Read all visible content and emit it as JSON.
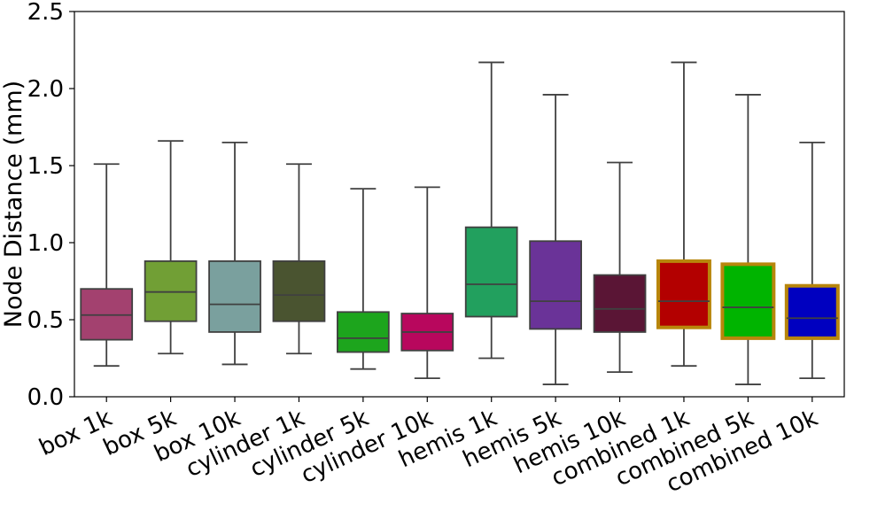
{
  "chart_data": {
    "type": "boxplot",
    "title": "",
    "xlabel": "",
    "ylabel": "Node Distance (mm)",
    "ylim": [
      0.0,
      2.5
    ],
    "yticks": [
      "0.0",
      "0.5",
      "1.0",
      "1.5",
      "2.0",
      "2.5"
    ],
    "categories": [
      "box 1k",
      "box 5k",
      "box 10k",
      "cylinder 1k",
      "cylinder 5k",
      "cylinder 10k",
      "hemis 1k",
      "hemis 5k",
      "hemis 10k",
      "combined 1k",
      "combined 5k",
      "combined 10k"
    ],
    "boxes": [
      {
        "name": "box 1k",
        "min": 0.2,
        "q1": 0.37,
        "median": 0.53,
        "q3": 0.7,
        "max": 1.51,
        "color": "#a3416f",
        "edge": "#404040"
      },
      {
        "name": "box 5k",
        "min": 0.28,
        "q1": 0.49,
        "median": 0.68,
        "q3": 0.88,
        "max": 1.66,
        "color": "#719f35",
        "edge": "#404040"
      },
      {
        "name": "box 10k",
        "min": 0.21,
        "q1": 0.42,
        "median": 0.6,
        "q3": 0.88,
        "max": 1.65,
        "color": "#7aa09e",
        "edge": "#404040"
      },
      {
        "name": "cylinder 1k",
        "min": 0.28,
        "q1": 0.49,
        "median": 0.66,
        "q3": 0.88,
        "max": 1.51,
        "color": "#4a5430",
        "edge": "#404040"
      },
      {
        "name": "cylinder 5k",
        "min": 0.18,
        "q1": 0.29,
        "median": 0.38,
        "q3": 0.55,
        "max": 1.35,
        "color": "#1da51d",
        "edge": "#404040"
      },
      {
        "name": "cylinder 10k",
        "min": 0.12,
        "q1": 0.3,
        "median": 0.42,
        "q3": 0.54,
        "max": 1.36,
        "color": "#b8075d",
        "edge": "#404040"
      },
      {
        "name": "hemis 1k",
        "min": 0.25,
        "q1": 0.52,
        "median": 0.73,
        "q3": 1.1,
        "max": 2.17,
        "color": "#22a05e",
        "edge": "#404040"
      },
      {
        "name": "hemis 5k",
        "min": 0.08,
        "q1": 0.44,
        "median": 0.62,
        "q3": 1.01,
        "max": 1.96,
        "color": "#6a3398",
        "edge": "#404040"
      },
      {
        "name": "hemis 10k",
        "min": 0.16,
        "q1": 0.42,
        "median": 0.57,
        "q3": 0.79,
        "max": 1.52,
        "color": "#5a1535",
        "edge": "#404040"
      },
      {
        "name": "combined 1k",
        "min": 0.2,
        "q1": 0.45,
        "median": 0.62,
        "q3": 0.88,
        "max": 2.17,
        "color": "#b30000",
        "edge": "#b8860b"
      },
      {
        "name": "combined 5k",
        "min": 0.08,
        "q1": 0.38,
        "median": 0.58,
        "q3": 0.86,
        "max": 1.96,
        "color": "#00b400",
        "edge": "#b8860b"
      },
      {
        "name": "combined 10k",
        "min": 0.12,
        "q1": 0.38,
        "median": 0.51,
        "q3": 0.72,
        "max": 1.65,
        "color": "#0000c0",
        "edge": "#b8860b"
      }
    ]
  }
}
